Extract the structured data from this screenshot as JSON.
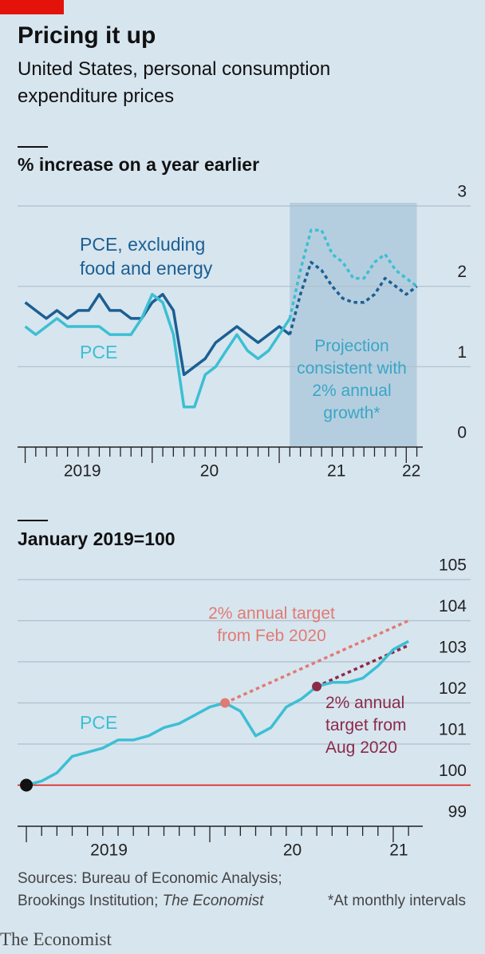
{
  "title": "Pricing it up",
  "subtitle": "United States, personal consumption expenditure prices",
  "source": "Sources: Bureau of Economic Analysis; Brookings Institution;",
  "source_italic": "The Economist",
  "note": "*At monthly intervals",
  "brand": "The Economist",
  "chart_data": [
    {
      "type": "line",
      "panel_label": "% increase on a year earlier",
      "x": [
        2019,
        2019.083,
        2019.167,
        2019.25,
        2019.333,
        2019.417,
        2019.5,
        2019.583,
        2019.667,
        2019.75,
        2019.833,
        2019.917,
        2020,
        2020.083,
        2020.167,
        2020.25,
        2020.333,
        2020.417,
        2020.5,
        2020.583,
        2020.667,
        2020.75,
        2020.833,
        2020.917,
        2021,
        2021.083,
        2021.167,
        2021.25,
        2021.333,
        2021.417,
        2021.5,
        2021.583,
        2021.667,
        2021.75,
        2021.833,
        2021.917,
        2022,
        2022.083
      ],
      "series": [
        {
          "name": "PCE, excluding food and energy",
          "color": "#1b5f93",
          "values": [
            1.8,
            1.7,
            1.6,
            1.7,
            1.6,
            1.7,
            1.7,
            1.9,
            1.7,
            1.7,
            1.6,
            1.6,
            1.8,
            1.9,
            1.7,
            0.9,
            1.0,
            1.1,
            1.3,
            1.4,
            1.5,
            1.4,
            1.3,
            1.4,
            1.5,
            1.4,
            1.9,
            2.3,
            2.2,
            2.0,
            1.85,
            1.8,
            1.8,
            1.9,
            2.1,
            2.0,
            1.9,
            2.0
          ]
        },
        {
          "name": "PCE",
          "color": "#3cbfd3",
          "values": [
            1.5,
            1.4,
            1.5,
            1.6,
            1.5,
            1.5,
            1.5,
            1.5,
            1.4,
            1.4,
            1.4,
            1.6,
            1.9,
            1.8,
            1.4,
            0.5,
            0.5,
            0.9,
            1.0,
            1.2,
            1.4,
            1.2,
            1.1,
            1.2,
            1.4,
            1.6,
            2.2,
            2.7,
            2.7,
            2.4,
            2.3,
            2.1,
            2.1,
            2.3,
            2.4,
            2.2,
            2.1,
            2.0
          ]
        }
      ],
      "projection": {
        "label": "Projection consistent with 2% annual growth*",
        "start": 2021.083,
        "end": 2022.083,
        "color": "#b5cedf"
      },
      "xlim": [
        2018.94,
        2022.13
      ],
      "xticks": [
        {
          "value": 2019.45,
          "label": "2019"
        },
        {
          "value": 2020.45,
          "label": "20"
        },
        {
          "value": 2021.45,
          "label": "21"
        },
        {
          "value": 2022.04,
          "label": "22"
        }
      ],
      "ylim": [
        0,
        3
      ],
      "yticks": [
        0,
        1,
        2,
        3
      ],
      "grid": true
    },
    {
      "type": "line",
      "panel_label": "January 2019=100",
      "x": [
        2019,
        2019.083,
        2019.167,
        2019.25,
        2019.333,
        2019.417,
        2019.5,
        2019.583,
        2019.667,
        2019.75,
        2019.833,
        2019.917,
        2020,
        2020.083,
        2020.167,
        2020.25,
        2020.333,
        2020.417,
        2020.5,
        2020.583,
        2020.667,
        2020.75,
        2020.833,
        2020.917,
        2021,
        2021.083
      ],
      "series": [
        {
          "name": "PCE",
          "color": "#3cbfd3",
          "values": [
            100,
            100.1,
            100.3,
            100.7,
            100.8,
            100.9,
            101.1,
            101.1,
            101.2,
            101.4,
            101.5,
            101.7,
            101.9,
            102,
            101.8,
            101.2,
            101.4,
            101.9,
            102.1,
            102.4,
            102.5,
            102.5,
            102.6,
            102.9,
            103.3,
            103.5
          ]
        }
      ],
      "targets": [
        {
          "label": "2% annual target from Feb 2020",
          "color": "#e07b73",
          "x": [
            2020.083,
            2021.083
          ],
          "values": [
            102,
            104
          ]
        },
        {
          "label": "2% annual target from Aug 2020",
          "color": "#8b2a47",
          "x": [
            2020.583,
            2021.083
          ],
          "values": [
            102.4,
            103.4
          ]
        }
      ],
      "baseline": 100,
      "baseline_color": "#e3120b",
      "xlim": [
        2018.952,
        2021.161
      ],
      "xticks": [
        {
          "value": 2019.45,
          "label": "2019"
        },
        {
          "value": 2020.45,
          "label": "20"
        },
        {
          "value": 2021.03,
          "label": "21"
        }
      ],
      "ylim": [
        99,
        105
      ],
      "yticks": [
        99,
        100,
        101,
        102,
        103,
        104,
        105
      ],
      "grid": true
    }
  ]
}
